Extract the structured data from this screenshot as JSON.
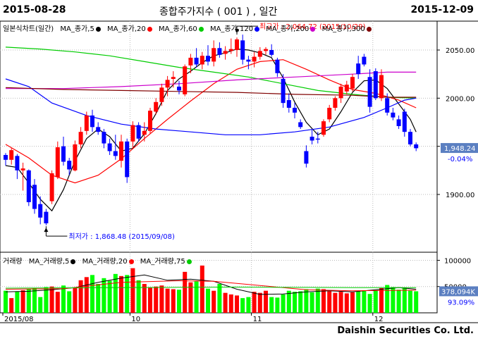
{
  "header": {
    "start_date": "2015-08-28",
    "title": "종합주가지수 ( 001 ) , 일간",
    "end_date": "2015-12-09"
  },
  "price_legend": {
    "label": "일본식차트(일간)",
    "items": [
      {
        "text": "MA_종가,5",
        "color": "#000000"
      },
      {
        "text": "MA_종가,20",
        "color": "#ff0000"
      },
      {
        "text": "MA_종가,60",
        "color": "#00cc00"
      },
      {
        "text": "MA_종가,120",
        "color": "#0000ff"
      },
      {
        "text": "MA_종가,200",
        "color": "#cc00cc"
      },
      {
        "text": "MA_종가,300",
        "color": "#800000"
      }
    ]
  },
  "volume_legend": {
    "label": "거래량",
    "items": [
      {
        "text": "MA_거래량,5",
        "color": "#000000"
      },
      {
        "text": "MA_거래량,20",
        "color": "#ff0000"
      },
      {
        "text": "MA_거래량,75",
        "color": "#00cc00"
      }
    ]
  },
  "annotations": {
    "high": "최고가 : 2,064.72 (2015/10/29)",
    "low": "최저가 : 1,868.48 (2015/09/08)"
  },
  "current": {
    "price": "1,948.24",
    "change": "-0.04%",
    "volume": "378,094K",
    "volume_pct": "93.09%"
  },
  "brand": "Daishin Securities Co. Ltd.",
  "colors": {
    "up": "#ff0000",
    "down": "#0000ff",
    "vol_up": "#ff0000",
    "vol_down": "#00ff00"
  },
  "chart_data": {
    "type": "candlestick",
    "price_axis": {
      "ticks": [
        1900,
        1950,
        2000,
        2050
      ],
      "tick_labels": [
        "1900.00",
        "",
        "2000.00",
        "2050.00"
      ]
    },
    "volume_axis": {
      "ticks": [
        50000,
        100000
      ],
      "tick_labels": [
        "50000",
        "100000"
      ]
    },
    "x_labels": [
      {
        "index": 0,
        "text": "2015/08"
      },
      {
        "index": 22,
        "text": "10"
      },
      {
        "index": 43,
        "text": "11"
      },
      {
        "index": 64,
        "text": "12"
      }
    ],
    "candles": [
      [
        1941,
        1943,
        1930,
        1936
      ],
      [
        1936,
        1948,
        1931,
        1946
      ],
      [
        1940,
        1942,
        1916,
        1925
      ],
      [
        1925,
        1933,
        1904,
        1927
      ],
      [
        1925,
        1926,
        1888,
        1892
      ],
      [
        1910,
        1916,
        1880,
        1885
      ],
      [
        1890,
        1898,
        1869,
        1876
      ],
      [
        1882,
        1885,
        1868,
        1870
      ],
      [
        1893,
        1925,
        1890,
        1922
      ],
      [
        1918,
        1955,
        1916,
        1949
      ],
      [
        1950,
        1960,
        1930,
        1934
      ],
      [
        1935,
        1938,
        1920,
        1926
      ],
      [
        1925,
        1956,
        1924,
        1952
      ],
      [
        1952,
        1970,
        1948,
        1965
      ],
      [
        1966,
        1986,
        1962,
        1982
      ],
      [
        1982,
        1988,
        1965,
        1970
      ],
      [
        1970,
        1975,
        1962,
        1965
      ],
      [
        1965,
        1968,
        1948,
        1953
      ],
      [
        1953,
        1958,
        1941,
        1945
      ],
      [
        1945,
        1962,
        1936,
        1940
      ],
      [
        1935,
        1962,
        1928,
        1955
      ],
      [
        1955,
        1958,
        1912,
        1918
      ],
      [
        1955,
        1976,
        1948,
        1972
      ],
      [
        1972,
        1975,
        1955,
        1958
      ],
      [
        1962,
        1975,
        1955,
        1966
      ],
      [
        1966,
        1990,
        1963,
        1987
      ],
      [
        1986,
        2000,
        1983,
        1996
      ],
      [
        1996,
        2015,
        1992,
        2011
      ],
      [
        2011,
        2023,
        2002,
        2019
      ],
      [
        2020,
        2028,
        2011,
        2022
      ],
      [
        2012,
        2018,
        2004,
        2008
      ],
      [
        2004,
        2035,
        2002,
        2033
      ],
      [
        2034,
        2046,
        2026,
        2042
      ],
      [
        2042,
        2052,
        2032,
        2035
      ],
      [
        2035,
        2048,
        2030,
        2044
      ],
      [
        2044,
        2055,
        2034,
        2038
      ],
      [
        2038,
        2060,
        2033,
        2052
      ],
      [
        2052,
        2058,
        2042,
        2045
      ],
      [
        2046,
        2054,
        2040,
        2049
      ],
      [
        2049,
        2062,
        2046,
        2051
      ],
      [
        2050,
        2063,
        2043,
        2061
      ],
      [
        2060,
        2066,
        2035,
        2040
      ],
      [
        2040,
        2044,
        2030,
        2038
      ],
      [
        2038,
        2048,
        2032,
        2043
      ],
      [
        2043,
        2053,
        2040,
        2049
      ],
      [
        2049,
        2053,
        2045,
        2051
      ],
      [
        2050,
        2056,
        2043,
        2045
      ],
      [
        2040,
        2042,
        2022,
        2026
      ],
      [
        2020,
        2025,
        1990,
        1995
      ],
      [
        1998,
        2005,
        1985,
        1990
      ],
      [
        1990,
        1995,
        1979,
        1985
      ],
      [
        1975,
        1978,
        1968,
        1970
      ],
      [
        1945,
        1951,
        1928,
        1932
      ],
      [
        1960,
        1967,
        1952,
        1956
      ],
      [
        1958,
        1965,
        1953,
        1957
      ],
      [
        1962,
        1978,
        1960,
        1976
      ],
      [
        1978,
        1993,
        1975,
        1990
      ],
      [
        1990,
        2002,
        1987,
        2000
      ],
      [
        2000,
        2015,
        1995,
        2012
      ],
      [
        2007,
        2018,
        2004,
        2014
      ],
      [
        2010,
        2025,
        2007,
        2022
      ],
      [
        2036,
        2044,
        2020,
        2025
      ],
      [
        2043,
        2046,
        2033,
        2035
      ],
      [
        2022,
        2030,
        1985,
        1991
      ],
      [
        2028,
        2031,
        1998,
        2000
      ],
      [
        2000,
        2030,
        1997,
        2024
      ],
      [
        2000,
        2005,
        1982,
        1985
      ],
      [
        1985,
        1990,
        1977,
        1980
      ],
      [
        1978,
        1982,
        1968,
        1971
      ],
      [
        1986,
        1989,
        1960,
        1965
      ],
      [
        1965,
        1968,
        1950,
        1952
      ],
      [
        1952,
        1954,
        1945,
        1948
      ]
    ],
    "ma": [
      {
        "name": "MA_종가,5",
        "color": "#000000",
        "values": [
          [
            0,
            1930
          ],
          [
            2,
            1928
          ],
          [
            4,
            1912
          ],
          [
            6,
            1895
          ],
          [
            8,
            1883
          ],
          [
            10,
            1905
          ],
          [
            12,
            1935
          ],
          [
            14,
            1958
          ],
          [
            16,
            1968
          ],
          [
            18,
            1960
          ],
          [
            20,
            1945
          ],
          [
            22,
            1948
          ],
          [
            24,
            1963
          ],
          [
            26,
            1984
          ],
          [
            28,
            2008
          ],
          [
            30,
            2020
          ],
          [
            32,
            2028
          ],
          [
            34,
            2037
          ],
          [
            36,
            2044
          ],
          [
            38,
            2047
          ],
          [
            40,
            2051
          ],
          [
            42,
            2050
          ],
          [
            44,
            2047
          ],
          [
            46,
            2042
          ],
          [
            48,
            2021
          ],
          [
            50,
            1996
          ],
          [
            52,
            1975
          ],
          [
            54,
            1962
          ],
          [
            56,
            1968
          ],
          [
            58,
            1986
          ],
          [
            60,
            2006
          ],
          [
            62,
            2018
          ],
          [
            64,
            2019
          ],
          [
            66,
            2010
          ],
          [
            68,
            1994
          ],
          [
            70,
            1978
          ],
          [
            71,
            1965
          ]
        ]
      },
      {
        "name": "MA_종가,20",
        "color": "#ff0000",
        "values": [
          [
            0,
            1952
          ],
          [
            4,
            1938
          ],
          [
            8,
            1920
          ],
          [
            12,
            1912
          ],
          [
            16,
            1920
          ],
          [
            20,
            1937
          ],
          [
            24,
            1958
          ],
          [
            28,
            1978
          ],
          [
            32,
            1997
          ],
          [
            36,
            2015
          ],
          [
            40,
            2030
          ],
          [
            44,
            2038
          ],
          [
            48,
            2040
          ],
          [
            52,
            2030
          ],
          [
            56,
            2019
          ],
          [
            60,
            2009
          ],
          [
            64,
            2005
          ],
          [
            68,
            1998
          ],
          [
            71,
            1990
          ]
        ]
      },
      {
        "name": "MA_종가,60",
        "color": "#00cc00",
        "values": [
          [
            0,
            2053
          ],
          [
            6,
            2051
          ],
          [
            12,
            2048
          ],
          [
            18,
            2044
          ],
          [
            24,
            2038
          ],
          [
            30,
            2032
          ],
          [
            36,
            2027
          ],
          [
            42,
            2022
          ],
          [
            48,
            2015
          ],
          [
            54,
            2008
          ],
          [
            60,
            2004
          ],
          [
            66,
            2001
          ],
          [
            71,
            2000
          ]
        ]
      },
      {
        "name": "MA_종가,120",
        "color": "#0000ff",
        "values": [
          [
            0,
            2020
          ],
          [
            4,
            2012
          ],
          [
            8,
            1995
          ],
          [
            14,
            1982
          ],
          [
            20,
            1973
          ],
          [
            26,
            1968
          ],
          [
            32,
            1965
          ],
          [
            38,
            1962
          ],
          [
            44,
            1962
          ],
          [
            50,
            1965
          ],
          [
            56,
            1970
          ],
          [
            62,
            1980
          ],
          [
            66,
            1990
          ],
          [
            69,
            1998
          ],
          [
            71,
            2000
          ]
        ]
      },
      {
        "name": "MA_종가,200",
        "color": "#cc00cc",
        "values": [
          [
            0,
            2010
          ],
          [
            10,
            2010
          ],
          [
            20,
            2012
          ],
          [
            30,
            2015
          ],
          [
            40,
            2019
          ],
          [
            50,
            2022
          ],
          [
            60,
            2025
          ],
          [
            66,
            2027
          ],
          [
            71,
            2027
          ]
        ]
      },
      {
        "name": "MA_종가,300",
        "color": "#800000",
        "values": [
          [
            0,
            2011
          ],
          [
            10,
            2009
          ],
          [
            20,
            2008
          ],
          [
            30,
            2007
          ],
          [
            40,
            2006
          ],
          [
            50,
            2004
          ],
          [
            60,
            2003
          ],
          [
            66,
            2001
          ],
          [
            71,
            2001
          ]
        ]
      }
    ],
    "volume": [
      42000,
      28000,
      41000,
      43000,
      45000,
      47000,
      30000,
      49000,
      50000,
      40000,
      52000,
      41000,
      48000,
      62000,
      68000,
      72000,
      55000,
      66000,
      61000,
      74000,
      70000,
      72000,
      85000,
      62000,
      55000,
      48000,
      50000,
      52000,
      46000,
      45000,
      44000,
      78000,
      58000,
      60000,
      90000,
      46000,
      42000,
      55000,
      38000,
      35000,
      33000,
      28000,
      30000,
      40000,
      38000,
      42000,
      30000,
      29000,
      35000,
      42000,
      40000,
      41000,
      45000,
      39000,
      46000,
      45000,
      41000,
      38000,
      40000,
      37000,
      39000,
      41000,
      43000,
      36000,
      43000,
      47000,
      53000,
      49000,
      44000,
      48000,
      42000,
      41000
    ],
    "volume_ma": [
      {
        "name": "MA_거래량,5",
        "color": "#000000",
        "values": [
          [
            0,
            40000
          ],
          [
            4,
            41000
          ],
          [
            8,
            44000
          ],
          [
            12,
            48000
          ],
          [
            16,
            58000
          ],
          [
            20,
            66000
          ],
          [
            24,
            72000
          ],
          [
            28,
            62000
          ],
          [
            32,
            64000
          ],
          [
            36,
            60000
          ],
          [
            40,
            45000
          ],
          [
            44,
            35000
          ],
          [
            48,
            36000
          ],
          [
            52,
            40000
          ],
          [
            56,
            42000
          ],
          [
            60,
            40000
          ],
          [
            64,
            44000
          ],
          [
            68,
            48000
          ],
          [
            71,
            45000
          ]
        ]
      },
      {
        "name": "MA_거래량,20",
        "color": "#ff0000",
        "values": [
          [
            0,
            45000
          ],
          [
            10,
            46000
          ],
          [
            20,
            58000
          ],
          [
            30,
            61000
          ],
          [
            36,
            60000
          ],
          [
            44,
            52000
          ],
          [
            52,
            44000
          ],
          [
            60,
            42000
          ],
          [
            71,
            43000
          ]
        ]
      },
      {
        "name": "MA_거래량,75",
        "color": "#00cc00",
        "values": [
          [
            0,
            47000
          ],
          [
            20,
            48000
          ],
          [
            40,
            49000
          ],
          [
            60,
            48000
          ],
          [
            71,
            48000
          ]
        ]
      }
    ]
  }
}
